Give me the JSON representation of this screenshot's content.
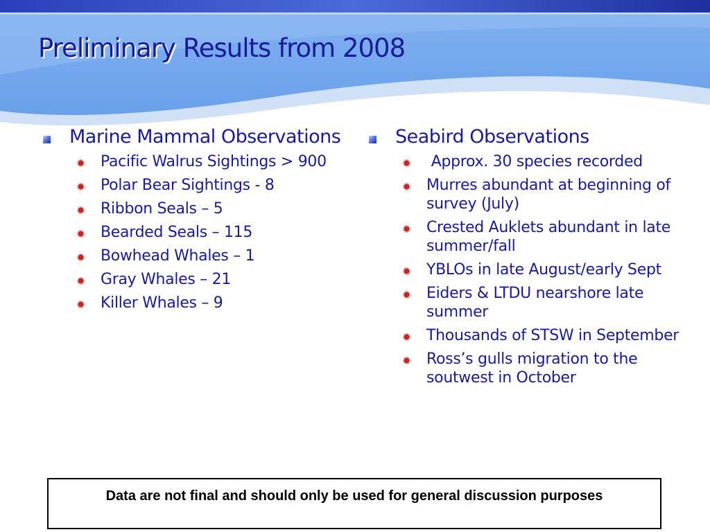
{
  "slide": {
    "title_emphasis": "Preliminary",
    "title_rest": " Results from 2008",
    "colors": {
      "title": "#1a1a99",
      "text": "#1a1a99",
      "header_band_light": "#8fb7ee",
      "header_band_mid": "#6fa3ea",
      "bullet_l2": "#cc2222"
    }
  },
  "left_column": {
    "heading": "Marine Mammal Observations",
    "items": [
      {
        "text": "Pacific Walrus Sightings > 900"
      },
      {
        "text": "Polar Bear Sightings - 8"
      },
      {
        "text": "Ribbon Seals – 5"
      },
      {
        "text": "Bearded Seals – 115"
      },
      {
        "text": "Bowhead Whales – 1"
      },
      {
        "text": "Gray Whales – 21"
      },
      {
        "text": "Killer Whales – 9"
      }
    ]
  },
  "right_column": {
    "heading": "Seabird Observations",
    "items": [
      {
        "text": " Approx. 30 species recorded"
      },
      {
        "text": "Murres abundant at beginning of survey (July)"
      },
      {
        "text": "Crested Auklets abundant in late summer/fall"
      },
      {
        "text": "YBLOs in late August/early Sept"
      },
      {
        "text": "Eiders & LTDU nearshore late summer"
      },
      {
        "text": "Thousands of STSW in September"
      },
      {
        "text": "Ross’s gulls migration to the soutwest in October"
      }
    ]
  },
  "disclaimer": {
    "text": "Data are not final and should only be used for general discussion purposes"
  }
}
